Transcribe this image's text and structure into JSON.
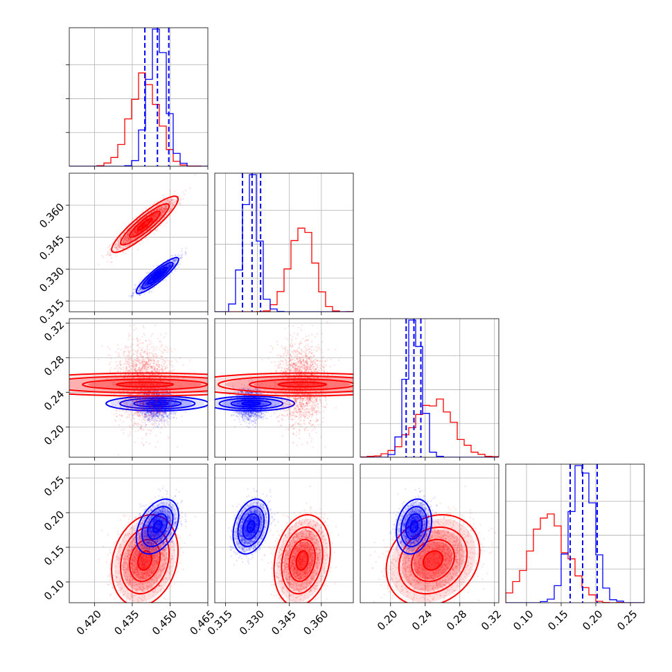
{
  "chart_data": {
    "type": "scatter",
    "kind": "corner plot",
    "parameters": 4,
    "grid": true,
    "colors": {
      "red": "#ff0000",
      "blue": "#0000ff",
      "grid": "#b0b0b0"
    },
    "series": [
      {
        "color": "red",
        "mean": [
          0.44,
          0.351,
          0.249,
          0.131
        ],
        "sd": [
          0.0055,
          0.0055,
          0.0225,
          0.0275
        ],
        "corr": [
          [
            1,
            0.9,
            0.0,
            0.2
          ],
          [
            0.9,
            1,
            0.0,
            0.2
          ],
          [
            0.0,
            0.0,
            1,
            0.2
          ],
          [
            0.2,
            0.2,
            0.2,
            1
          ]
        ]
      },
      {
        "color": "blue",
        "mean": [
          0.445,
          0.327,
          0.227,
          0.18
        ],
        "sd": [
          0.0035,
          0.0035,
          0.0085,
          0.0165
        ],
        "corr": [
          [
            1,
            0.9,
            0.0,
            0.4
          ],
          [
            0.9,
            1,
            0.0,
            0.3
          ],
          [
            0.0,
            0.0,
            1,
            0.2
          ],
          [
            0.4,
            0.3,
            0.2,
            1
          ]
        ]
      }
    ],
    "quantile_lines": {
      "color": "blue",
      "values": [
        [
          0.44,
          0.445,
          0.4495
        ],
        [
          0.323,
          0.3275,
          0.3315
        ],
        [
          0.218,
          0.227,
          0.235
        ],
        [
          0.163,
          0.181,
          0.202
        ]
      ]
    },
    "axes": [
      {
        "range": [
          0.41,
          0.465
        ],
        "ticks": [
          0.42,
          0.435,
          0.45,
          0.465
        ],
        "tick_labels": [
          "0.420",
          "0.435",
          "0.450",
          "0.465"
        ]
      },
      {
        "range": [
          0.31,
          0.375
        ],
        "ticks": [
          0.315,
          0.33,
          0.345,
          0.36
        ],
        "tick_labels": [
          "0.315",
          "0.330",
          "0.345",
          "0.360"
        ]
      },
      {
        "range": [
          0.165,
          0.325
        ],
        "ticks": [
          0.2,
          0.24,
          0.28,
          0.32
        ],
        "tick_labels": [
          "0.20",
          "0.24",
          "0.28",
          "0.32"
        ]
      },
      {
        "range": [
          0.07,
          0.27
        ],
        "ticks": [
          0.1,
          0.15,
          0.2,
          0.25
        ],
        "tick_labels": [
          "0.10",
          "0.15",
          "0.20",
          "0.25"
        ]
      }
    ]
  }
}
